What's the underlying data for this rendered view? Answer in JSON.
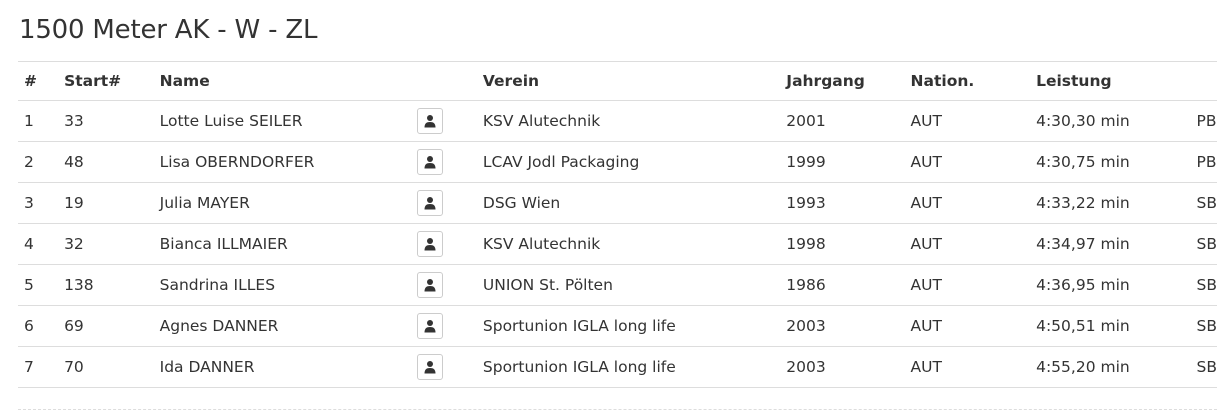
{
  "page_title": "1500 Meter AK - W - ZL",
  "columns": {
    "rank": "#",
    "start": "Start#",
    "name": "Name",
    "club": "Verein",
    "year": "Jahrgang",
    "nation": "Nation.",
    "performance": "Leistung"
  },
  "profile_icon": "user-icon",
  "rows": [
    {
      "rank": "1",
      "start": "33",
      "name": "Lotte Luise SEILER",
      "club": "KSV Alutechnik",
      "year": "2001",
      "nation": "AUT",
      "performance": "4:30,30 min",
      "note": "PB"
    },
    {
      "rank": "2",
      "start": "48",
      "name": "Lisa OBERNDORFER",
      "club": "LCAV Jodl Packaging",
      "year": "1999",
      "nation": "AUT",
      "performance": "4:30,75 min",
      "note": "PB"
    },
    {
      "rank": "3",
      "start": "19",
      "name": "Julia MAYER",
      "club": "DSG Wien",
      "year": "1993",
      "nation": "AUT",
      "performance": "4:33,22 min",
      "note": "SB"
    },
    {
      "rank": "4",
      "start": "32",
      "name": "Bianca ILLMAIER",
      "club": "KSV Alutechnik",
      "year": "1998",
      "nation": "AUT",
      "performance": "4:34,97 min",
      "note": "SB"
    },
    {
      "rank": "5",
      "start": "138",
      "name": "Sandrina ILLES",
      "club": "UNION St. Pölten",
      "year": "1986",
      "nation": "AUT",
      "performance": "4:36,95 min",
      "note": "SB"
    },
    {
      "rank": "6",
      "start": "69",
      "name": "Agnes DANNER",
      "club": "Sportunion IGLA long life",
      "year": "2003",
      "nation": "AUT",
      "performance": "4:50,51 min",
      "note": "SB"
    },
    {
      "rank": "7",
      "start": "70",
      "name": "Ida DANNER",
      "club": "Sportunion IGLA long life",
      "year": "2003",
      "nation": "AUT",
      "performance": "4:55,20 min",
      "note": "SB"
    }
  ]
}
